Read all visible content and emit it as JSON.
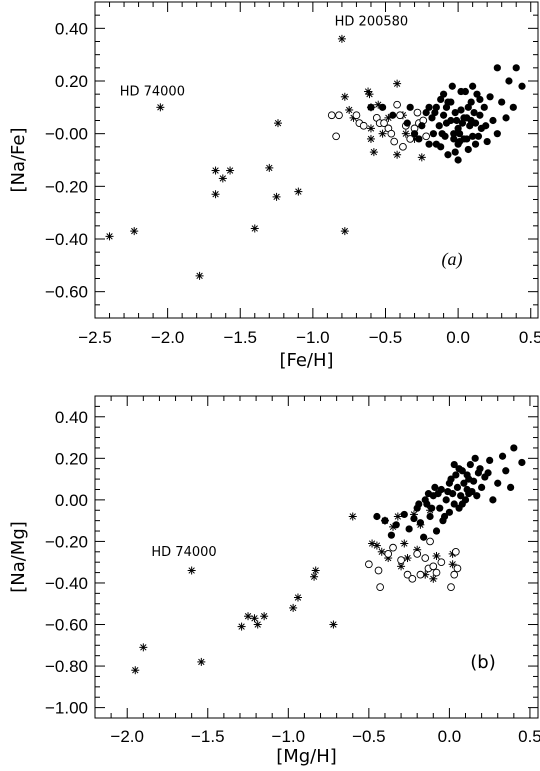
{
  "chart_data": [
    {
      "type": "scatter",
      "panel_label": "(a)",
      "xlabel": "[Fe/H]",
      "ylabel": "[Na/Fe]",
      "xlim": [
        -2.5,
        0.55
      ],
      "ylim": [
        -0.7,
        0.5
      ],
      "x_ticks": [
        -2.5,
        -2.0,
        -1.5,
        -1.0,
        -0.5,
        0.0,
        0.5
      ],
      "x_tick_labels": [
        "−2.5",
        "−2.0",
        "−1.5",
        "−1.0",
        "−0.5",
        "0.0",
        "0.5"
      ],
      "y_ticks": [
        0.4,
        0.2,
        0.0,
        -0.2,
        -0.4,
        -0.6
      ],
      "y_tick_labels": [
        "0.40",
        "0.20",
        "−0.00",
        "−0.20",
        "−0.40",
        "−0.60"
      ],
      "annotations": [
        {
          "text": "HD 200580",
          "x": -0.85,
          "y": 0.41
        },
        {
          "text": "HD 74000",
          "x": -2.33,
          "y": 0.145
        }
      ],
      "series": [
        {
          "marker": "asterisk",
          "points": [
            [
              -2.4,
              -0.39
            ],
            [
              -2.23,
              -0.37
            ],
            [
              -2.05,
              0.1
            ],
            [
              -1.78,
              -0.54
            ],
            [
              -1.67,
              -0.14
            ],
            [
              -1.67,
              -0.23
            ],
            [
              -1.62,
              -0.17
            ],
            [
              -1.57,
              -0.14
            ],
            [
              -1.4,
              -0.36
            ],
            [
              -1.3,
              -0.13
            ],
            [
              -1.25,
              -0.24
            ],
            [
              -1.24,
              0.04
            ],
            [
              -1.1,
              -0.22
            ],
            [
              -0.8,
              0.36
            ],
            [
              -0.78,
              -0.37
            ],
            [
              -0.78,
              0.14
            ],
            [
              -0.75,
              0.09
            ],
            [
              -0.72,
              0.06
            ],
            [
              -0.62,
              0.16
            ],
            [
              -0.61,
              0.15
            ],
            [
              -0.6,
              0.1
            ],
            [
              -0.6,
              0.02
            ],
            [
              -0.6,
              -0.02
            ],
            [
              -0.58,
              -0.07
            ],
            [
              -0.55,
              0.11
            ],
            [
              -0.52,
              0.0
            ],
            [
              -0.48,
              0.06
            ],
            [
              -0.42,
              0.19
            ],
            [
              -0.42,
              -0.08
            ],
            [
              -0.38,
              0.07
            ],
            [
              -0.36,
              0.0
            ],
            [
              -0.3,
              -0.02
            ],
            [
              -0.25,
              -0.09
            ]
          ]
        },
        {
          "marker": "open-circle",
          "points": [
            [
              -0.87,
              0.07
            ],
            [
              -0.84,
              -0.01
            ],
            [
              -0.82,
              0.07
            ],
            [
              -0.7,
              0.07
            ],
            [
              -0.68,
              0.04
            ],
            [
              -0.65,
              0.03
            ],
            [
              -0.56,
              0.06
            ],
            [
              -0.54,
              0.04
            ],
            [
              -0.51,
              0.04
            ],
            [
              -0.48,
              0.02
            ],
            [
              -0.46,
              0.0
            ],
            [
              -0.44,
              -0.03
            ],
            [
              -0.42,
              0.11
            ],
            [
              -0.4,
              0.07
            ],
            [
              -0.38,
              -0.05
            ],
            [
              -0.36,
              0.03
            ],
            [
              -0.33,
              -0.02
            ],
            [
              -0.3,
              0.02
            ],
            [
              -0.28,
              0.08
            ],
            [
              -0.27,
              0.04
            ],
            [
              -0.24,
              0.05
            ],
            [
              -0.22,
              -0.01
            ]
          ]
        },
        {
          "marker": "filled-circle",
          "points": [
            [
              -0.6,
              0.1
            ],
            [
              -0.52,
              0.1
            ],
            [
              -0.45,
              0.07
            ],
            [
              -0.35,
              0.04
            ],
            [
              -0.33,
              0.1
            ],
            [
              -0.3,
              0.0
            ],
            [
              -0.27,
              -0.02
            ],
            [
              -0.25,
              0.03
            ],
            [
              -0.22,
              0.08
            ],
            [
              -0.2,
              -0.04
            ],
            [
              -0.18,
              0.06
            ],
            [
              -0.17,
              0.0
            ],
            [
              -0.15,
              0.1
            ],
            [
              -0.13,
              0.03
            ],
            [
              -0.12,
              -0.05
            ],
            [
              -0.1,
              0.07
            ],
            [
              -0.1,
              0.15
            ],
            [
              -0.09,
              -0.01
            ],
            [
              -0.08,
              0.1
            ],
            [
              -0.07,
              -0.08
            ],
            [
              -0.05,
              0.05
            ],
            [
              -0.05,
              0.12
            ],
            [
              -0.03,
              0.0
            ],
            [
              -0.02,
              -0.07
            ],
            [
              -0.01,
              0.05
            ],
            [
              0.0,
              0.02
            ],
            [
              0.0,
              -0.1
            ],
            [
              0.01,
              -0.03
            ],
            [
              0.02,
              0.09
            ],
            [
              0.03,
              0.04
            ],
            [
              0.04,
              -0.02
            ],
            [
              0.05,
              0.16
            ],
            [
              0.06,
              0.06
            ],
            [
              0.07,
              -0.06
            ],
            [
              0.08,
              0.03
            ],
            [
              0.09,
              0.12
            ],
            [
              0.1,
              -0.01
            ],
            [
              0.11,
              0.08
            ],
            [
              0.12,
              0.04
            ],
            [
              0.13,
              0.15
            ],
            [
              0.14,
              -0.01
            ],
            [
              0.15,
              0.07
            ],
            [
              0.16,
              0.02
            ],
            [
              0.18,
              0.1
            ],
            [
              0.2,
              -0.03
            ],
            [
              0.22,
              0.14
            ],
            [
              0.24,
              0.05
            ],
            [
              0.27,
              0.0
            ],
            [
              0.27,
              0.25
            ],
            [
              0.3,
              0.12
            ],
            [
              0.33,
              0.06
            ],
            [
              0.35,
              0.2
            ],
            [
              0.38,
              0.1
            ],
            [
              0.4,
              0.25
            ],
            [
              0.44,
              0.18
            ],
            [
              -0.07,
              0.12
            ],
            [
              -0.04,
              0.18
            ],
            [
              0.0,
              -0.04
            ],
            [
              -0.15,
              -0.04
            ],
            [
              0.02,
              0.16
            ],
            [
              -0.02,
              0.08
            ],
            [
              0.06,
              -0.02
            ],
            [
              -0.12,
              0.13
            ],
            [
              0.09,
              0.05
            ],
            [
              -0.2,
              0.1
            ],
            [
              0.1,
              0.18
            ],
            [
              0.15,
              0.13
            ],
            [
              -0.08,
              0.04
            ],
            [
              0.01,
              0.0
            ],
            [
              0.04,
              0.06
            ],
            [
              -0.03,
              -0.02
            ],
            [
              0.12,
              -0.04
            ],
            [
              -0.11,
              0.0
            ],
            [
              0.07,
              0.1
            ],
            [
              0.19,
              0.03
            ],
            [
              -0.16,
              0.08
            ]
          ]
        }
      ]
    },
    {
      "type": "scatter",
      "panel_label": "(b)",
      "xlabel": "[Mg/H]",
      "ylabel": "[Na/Mg]",
      "xlim": [
        -2.2,
        0.55
      ],
      "ylim": [
        -1.05,
        0.5
      ],
      "x_ticks": [
        -2.0,
        -1.5,
        -1.0,
        -0.5,
        0.0,
        0.5
      ],
      "x_tick_labels": [
        "−2.0",
        "−1.5",
        "−1.0",
        "−0.5",
        "0.0",
        "0.5"
      ],
      "y_ticks": [
        0.4,
        0.2,
        0.0,
        -0.2,
        -0.4,
        -0.6,
        -0.8,
        -1.0
      ],
      "y_tick_labels": [
        "0.40",
        "0.20",
        "0.00",
        "−0.20",
        "−0.40",
        "−0.60",
        "−0.80",
        "−1.00"
      ],
      "annotations": [
        {
          "text": "HD 74000",
          "x": -1.85,
          "y": -0.27
        }
      ],
      "series": [
        {
          "marker": "asterisk",
          "points": [
            [
              -1.95,
              -0.82
            ],
            [
              -1.9,
              -0.71
            ],
            [
              -1.6,
              -0.34
            ],
            [
              -1.54,
              -0.78
            ],
            [
              -1.29,
              -0.61
            ],
            [
              -1.25,
              -0.56
            ],
            [
              -1.21,
              -0.57
            ],
            [
              -1.19,
              -0.6
            ],
            [
              -1.15,
              -0.56
            ],
            [
              -0.97,
              -0.52
            ],
            [
              -0.94,
              -0.47
            ],
            [
              -0.84,
              -0.37
            ],
            [
              -0.83,
              -0.34
            ],
            [
              -0.72,
              -0.6
            ],
            [
              -0.6,
              -0.08
            ],
            [
              -0.48,
              -0.21
            ],
            [
              -0.45,
              -0.22
            ],
            [
              -0.42,
              -0.25
            ],
            [
              -0.4,
              -0.1
            ],
            [
              -0.38,
              -0.28
            ],
            [
              -0.35,
              -0.13
            ],
            [
              -0.32,
              -0.08
            ],
            [
              -0.3,
              -0.32
            ],
            [
              -0.28,
              -0.21
            ],
            [
              -0.26,
              -0.28
            ],
            [
              -0.22,
              -0.07
            ],
            [
              -0.2,
              -0.24
            ],
            [
              -0.18,
              -0.12
            ],
            [
              -0.15,
              -0.36
            ],
            [
              -0.12,
              -0.05
            ],
            [
              -0.1,
              -0.38
            ],
            [
              -0.08,
              -0.27
            ],
            [
              0.02,
              -0.31
            ],
            [
              0.02,
              -0.26
            ]
          ]
        },
        {
          "marker": "open-circle",
          "points": [
            [
              -0.5,
              -0.31
            ],
            [
              -0.44,
              -0.34
            ],
            [
              -0.43,
              -0.42
            ],
            [
              -0.38,
              -0.26
            ],
            [
              -0.35,
              -0.23
            ],
            [
              -0.3,
              -0.29
            ],
            [
              -0.26,
              -0.36
            ],
            [
              -0.23,
              -0.38
            ],
            [
              -0.2,
              -0.26
            ],
            [
              -0.18,
              -0.36
            ],
            [
              -0.15,
              -0.28
            ],
            [
              -0.13,
              -0.33
            ],
            [
              -0.1,
              -0.32
            ],
            [
              -0.08,
              -0.35
            ],
            [
              -0.05,
              -0.3
            ],
            [
              0.01,
              -0.42
            ],
            [
              0.03,
              -0.36
            ],
            [
              0.04,
              -0.25
            ],
            [
              0.05,
              -0.33
            ],
            [
              -0.12,
              -0.2
            ]
          ]
        },
        {
          "marker": "filled-circle",
          "points": [
            [
              -0.45,
              -0.08
            ],
            [
              -0.4,
              -0.1
            ],
            [
              -0.36,
              -0.17
            ],
            [
              -0.33,
              -0.12
            ],
            [
              -0.28,
              -0.07
            ],
            [
              -0.25,
              -0.14
            ],
            [
              -0.22,
              -0.09
            ],
            [
              -0.2,
              -0.04
            ],
            [
              -0.18,
              -0.11
            ],
            [
              -0.16,
              -0.18
            ],
            [
              -0.14,
              -0.02
            ],
            [
              -0.12,
              -0.08
            ],
            [
              -0.1,
              0.02
            ],
            [
              -0.08,
              -0.15
            ],
            [
              -0.06,
              -0.04
            ],
            [
              -0.05,
              0.05
            ],
            [
              -0.04,
              -0.1
            ],
            [
              -0.02,
              0.0
            ],
            [
              0.0,
              -0.06
            ],
            [
              0.0,
              0.08
            ],
            [
              0.02,
              0.03
            ],
            [
              0.03,
              -0.02
            ],
            [
              0.04,
              0.12
            ],
            [
              0.05,
              0.06
            ],
            [
              0.06,
              -0.04
            ],
            [
              0.07,
              0.02
            ],
            [
              0.08,
              0.14
            ],
            [
              0.09,
              0.08
            ],
            [
              0.1,
              0.0
            ],
            [
              0.11,
              0.05
            ],
            [
              0.12,
              0.1
            ],
            [
              0.13,
              0.17
            ],
            [
              0.14,
              0.04
            ],
            [
              0.15,
              0.09
            ],
            [
              0.17,
              0.02
            ],
            [
              0.18,
              0.13
            ],
            [
              0.2,
              0.06
            ],
            [
              0.22,
              0.11
            ],
            [
              0.25,
              0.19
            ],
            [
              0.27,
              0.0
            ],
            [
              0.3,
              0.08
            ],
            [
              0.33,
              0.21
            ],
            [
              0.35,
              0.14
            ],
            [
              0.38,
              0.06
            ],
            [
              0.4,
              0.25
            ],
            [
              0.45,
              0.18
            ],
            [
              -0.07,
              0.03
            ],
            [
              -0.03,
              -0.08
            ],
            [
              0.01,
              0.1
            ],
            [
              -0.11,
              -0.04
            ],
            [
              0.06,
              0.15
            ],
            [
              -0.01,
              0.04
            ],
            [
              0.08,
              -0.02
            ],
            [
              -0.15,
              0.0
            ],
            [
              0.11,
              0.12
            ],
            [
              0.16,
              0.2
            ],
            [
              -0.09,
              0.06
            ],
            [
              0.03,
              0.17
            ],
            [
              -0.19,
              -0.02
            ],
            [
              0.12,
              0.03
            ],
            [
              -0.13,
              0.03
            ],
            [
              0.19,
              0.15
            ],
            [
              0.24,
              0.13
            ]
          ]
        }
      ]
    }
  ]
}
